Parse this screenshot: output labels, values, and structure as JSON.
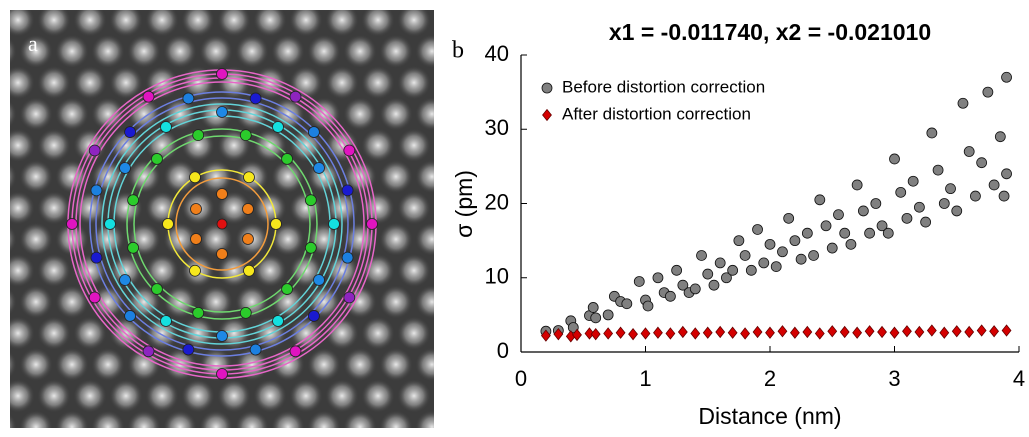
{
  "image_panel": {
    "label": "a"
  },
  "chart_data": {
    "type": "scatter",
    "panel_label": "b",
    "title": "x1 = -0.011740, x2 = -0.021010",
    "xlabel": "Distance (nm)",
    "ylabel": "σ (pm)",
    "xlim": [
      0,
      4
    ],
    "ylim": [
      0,
      40
    ],
    "xticks": [
      0,
      1,
      2,
      3,
      4
    ],
    "yticks": [
      0,
      10,
      20,
      30,
      40
    ],
    "legend": "upper left",
    "series": [
      {
        "name": "Before distortion correction",
        "color": "#808080",
        "marker": "circle",
        "x": [
          0.2,
          0.3,
          0.4,
          0.42,
          0.55,
          0.58,
          0.6,
          0.7,
          0.75,
          0.8,
          0.85,
          0.95,
          1.0,
          1.02,
          1.1,
          1.15,
          1.2,
          1.25,
          1.3,
          1.35,
          1.4,
          1.45,
          1.5,
          1.55,
          1.6,
          1.65,
          1.7,
          1.75,
          1.8,
          1.85,
          1.9,
          1.95,
          2.0,
          2.05,
          2.1,
          2.15,
          2.2,
          2.25,
          2.3,
          2.35,
          2.4,
          2.45,
          2.5,
          2.55,
          2.6,
          2.65,
          2.7,
          2.75,
          2.8,
          2.85,
          2.9,
          2.95,
          3.0,
          3.05,
          3.1,
          3.15,
          3.2,
          3.25,
          3.3,
          3.35,
          3.4,
          3.45,
          3.5,
          3.55,
          3.6,
          3.65,
          3.7,
          3.75,
          3.8,
          3.85,
          3.9,
          3.9,
          3.88
        ],
        "values": [
          2.8,
          2.9,
          4.2,
          3.3,
          4.9,
          6.0,
          4.6,
          5.0,
          7.5,
          6.8,
          6.5,
          9.5,
          7.0,
          6.2,
          10.0,
          8.0,
          7.5,
          11.0,
          9.0,
          8.0,
          8.5,
          13.0,
          10.5,
          9.0,
          12.0,
          10.0,
          11.0,
          15.0,
          13.0,
          11.0,
          16.5,
          12.0,
          14.5,
          11.5,
          13.5,
          18.0,
          15.0,
          12.5,
          16.0,
          13.0,
          20.5,
          17.0,
          14.0,
          18.5,
          16.0,
          14.5,
          22.5,
          19.0,
          16.0,
          20.0,
          17.0,
          16.0,
          26.0,
          21.5,
          18.0,
          23.0,
          19.5,
          17.5,
          29.5,
          24.5,
          20.0,
          22.0,
          19.0,
          33.5,
          27.0,
          21.0,
          25.5,
          35.0,
          22.5,
          29.0,
          37.0,
          24.0,
          21.0
        ]
      },
      {
        "name": "After distortion correction",
        "color": "#d40000",
        "marker": "diamond",
        "x": [
          0.2,
          0.3,
          0.4,
          0.45,
          0.55,
          0.6,
          0.7,
          0.8,
          0.9,
          1.0,
          1.1,
          1.2,
          1.3,
          1.4,
          1.5,
          1.6,
          1.7,
          1.8,
          1.9,
          2.0,
          2.1,
          2.2,
          2.3,
          2.4,
          2.5,
          2.6,
          2.7,
          2.8,
          2.9,
          3.0,
          3.1,
          3.2,
          3.3,
          3.4,
          3.5,
          3.6,
          3.7,
          3.8,
          3.9
        ],
        "values": [
          2.2,
          2.4,
          2.1,
          2.3,
          2.5,
          2.4,
          2.5,
          2.6,
          2.4,
          2.5,
          2.6,
          2.5,
          2.7,
          2.5,
          2.6,
          2.7,
          2.6,
          2.5,
          2.7,
          2.6,
          2.8,
          2.6,
          2.7,
          2.5,
          2.8,
          2.7,
          2.6,
          2.8,
          2.7,
          2.6,
          2.8,
          2.7,
          2.9,
          2.6,
          2.8,
          2.7,
          2.9,
          2.8,
          2.9
        ]
      }
    ]
  }
}
